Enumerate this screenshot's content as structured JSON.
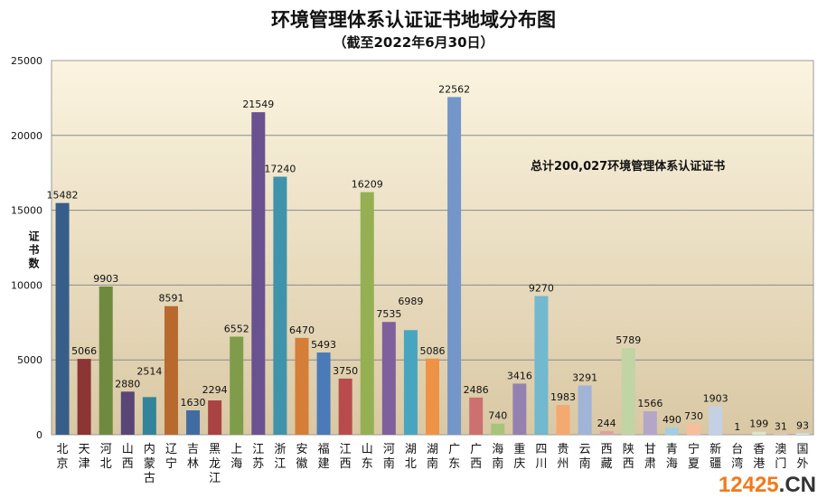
{
  "chart_data": {
    "type": "bar",
    "title": "环境管理体系认证证书地域分布图",
    "subtitle": "（截至2022年6月30日）",
    "ylabel": "证书数",
    "xlabel": "",
    "ylim": [
      0,
      25000
    ],
    "yticks": [
      0,
      5000,
      10000,
      15000,
      20000,
      25000
    ],
    "grid": true,
    "annotation": "总计200,027环境管理体系认证证书",
    "categories": [
      "北京",
      "天津",
      "河北",
      "山西",
      "内蒙古",
      "辽宁",
      "吉林",
      "黑龙江",
      "上海",
      "江苏",
      "浙江",
      "安徽",
      "福建",
      "江西",
      "山东",
      "河南",
      "湖北",
      "湖南",
      "广东",
      "广西",
      "海南",
      "重庆",
      "四川",
      "贵州",
      "云南",
      "西藏",
      "陕西",
      "甘肃",
      "青海",
      "宁夏",
      "新疆",
      "台湾",
      "香港",
      "澳门",
      "国外"
    ],
    "values": [
      15482,
      5066,
      9903,
      2880,
      2514,
      8591,
      1630,
      2294,
      6552,
      21549,
      17240,
      6470,
      5493,
      3750,
      16209,
      7535,
      6989,
      5086,
      22562,
      2486,
      740,
      3416,
      9270,
      1983,
      3291,
      244,
      5789,
      1566,
      490,
      730,
      1903,
      1,
      199,
      31,
      93
    ],
    "colors": [
      "#375d8a",
      "#8b3535",
      "#6f8a3e",
      "#5a4577",
      "#33839a",
      "#b86a2e",
      "#416ca1",
      "#a94343",
      "#7f9c4a",
      "#6a5290",
      "#3f93ab",
      "#d47e37",
      "#4a7ab8",
      "#b84c4c",
      "#94b053",
      "#7e609c",
      "#48a5c0",
      "#ee9246",
      "#7496c8",
      "#cc7070",
      "#a8c47a",
      "#9581b0",
      "#72b8cf",
      "#f6a871",
      "#a1b3d6",
      "#dca1a1",
      "#c1d4a3",
      "#b3a6c7",
      "#a2cfdf",
      "#f8bd9d",
      "#c5d0e5",
      "#e9cbcb",
      "#d9e6c9",
      "#d5cde0",
      "#cde6ee"
    ]
  },
  "watermark": {
    "num": "12425",
    "dot": ".CN"
  }
}
